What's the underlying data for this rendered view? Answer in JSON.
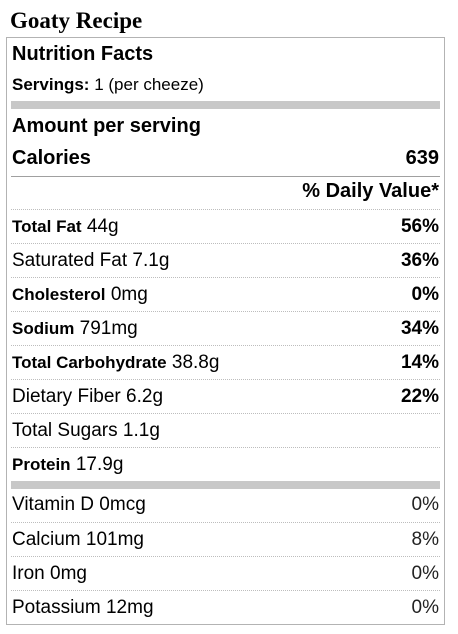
{
  "recipe_title": "Goaty Recipe",
  "nutrition": {
    "title": "Nutrition Facts",
    "servings_label": "Servings:",
    "servings_value": "1 (per cheeze)",
    "amount_per_serving": "Amount per serving",
    "calories_label": "Calories",
    "calories_value": "639",
    "daily_value_header": "% Daily Value*",
    "nutrients": [
      {
        "name": "Total Fat",
        "amount": "44g",
        "pct": "56%"
      },
      {
        "name": "Saturated Fat",
        "amount": "7.1g",
        "pct": "36%"
      },
      {
        "name": "Cholesterol",
        "amount": "0mg",
        "pct": "0%"
      },
      {
        "name": "Sodium",
        "amount": "791mg",
        "pct": "34%"
      },
      {
        "name": "Total Carbohydrate",
        "amount": "38.8g",
        "pct": "14%"
      },
      {
        "name": "Dietary Fiber",
        "amount": "6.2g",
        "pct": "22%"
      },
      {
        "name": "Total Sugars",
        "amount": "1.1g",
        "pct": ""
      },
      {
        "name": "Protein",
        "amount": "17.9g",
        "pct": ""
      }
    ],
    "vitamins": [
      {
        "name": "Vitamin D",
        "amount": "0mcg",
        "pct": "0%"
      },
      {
        "name": "Calcium",
        "amount": "101mg",
        "pct": "8%"
      },
      {
        "name": "Iron",
        "amount": "0mg",
        "pct": "0%"
      },
      {
        "name": "Potassium",
        "amount": "12mg",
        "pct": "0%"
      }
    ]
  }
}
